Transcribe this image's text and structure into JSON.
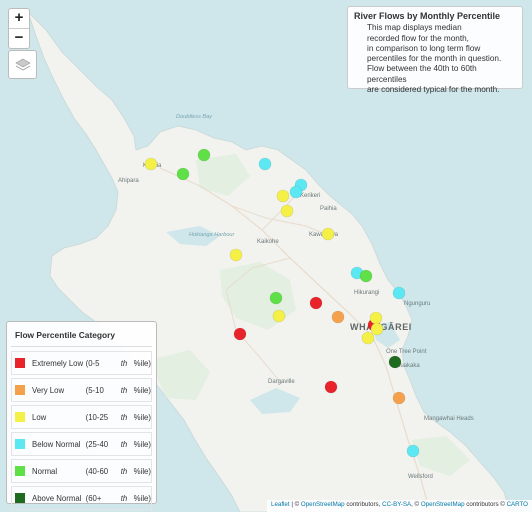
{
  "controls": {
    "zoom_in": "+",
    "zoom_out": "−"
  },
  "info": {
    "title": "River Flows by Monthly Percentile",
    "lines": [
      "This map displays median",
      "recorded flow for the month,",
      "in comparison to long term flow",
      "percentiles for the month in question.",
      "Flow between the 40th to 60th percentiles",
      "are considered typical for the month."
    ]
  },
  "legend": {
    "title": "Flow Percentile Category",
    "items": [
      {
        "category": "Extremely Low",
        "range": "(0-5",
        "sup": "th",
        "suffix": "%ile)",
        "color": "#e8232a"
      },
      {
        "category": "Very Low",
        "range": "(5-10",
        "sup": "th",
        "suffix": "%ile)",
        "color": "#f5a04b"
      },
      {
        "category": "Low",
        "range": "(10-25",
        "sup": "th",
        "suffix": "%ile)",
        "color": "#f4f046"
      },
      {
        "category": "Below Normal",
        "range": "(25-40",
        "sup": "th",
        "suffix": "%ile)",
        "color": "#5ce8f2"
      },
      {
        "category": "Normal",
        "range": "(40-60",
        "sup": "th",
        "suffix": "%ile)",
        "color": "#5ee046"
      },
      {
        "category": "Above Normal",
        "range": "(60+",
        "sup": "th",
        "suffix": "%ile)",
        "color": "#1e6a1e"
      }
    ]
  },
  "places": {
    "kaitaia": "Kaitaia",
    "ahipara": "Ahipara",
    "doubtless_bay": "Doubtless Bay",
    "kerikeri": "Kerikeri",
    "paihia": "Paihia",
    "kawakawa": "Kawakawa",
    "hokianga": "Hokianga Harbour",
    "kaikohe": "Kaikohe",
    "hikurangi": "Hikurangi",
    "ngunguru": "Ngunguru",
    "whangarei": "WHANGĀREI",
    "one_tree_point": "One Tree Point",
    "ruakaka": "Ruakaka",
    "dargaville": "Dargaville",
    "mangawhai": "Mangawhai Heads",
    "wellsford": "Wellsford"
  },
  "sites": [
    {
      "category": "Extremely Low"
    },
    {
      "category": "Extremely Low"
    },
    {
      "category": "Extremely Low"
    },
    {
      "category": "Extremely Low"
    },
    {
      "category": "Very Low"
    },
    {
      "category": "Very Low"
    },
    {
      "category": "Low"
    },
    {
      "category": "Low"
    },
    {
      "category": "Low"
    },
    {
      "category": "Low"
    },
    {
      "category": "Low"
    },
    {
      "category": "Low"
    },
    {
      "category": "Low"
    },
    {
      "category": "Low"
    },
    {
      "category": "Low"
    },
    {
      "category": "Below Normal"
    },
    {
      "category": "Below Normal"
    },
    {
      "category": "Below Normal"
    },
    {
      "category": "Below Normal"
    },
    {
      "category": "Below Normal"
    },
    {
      "category": "Below Normal"
    },
    {
      "category": "Normal"
    },
    {
      "category": "Normal"
    },
    {
      "category": "Normal"
    },
    {
      "category": "Normal"
    },
    {
      "category": "Above Normal"
    }
  ],
  "attribution": {
    "leaflet": "Leaflet",
    "sep1": " | © ",
    "osm": "OpenStreetMap",
    "contrib1": " contributors, ",
    "ccbysa": "CC-BY-SA",
    "sep2": ", © ",
    "osm2": "OpenStreetMap",
    "contrib2": " contributors © ",
    "carto": "CARTO"
  }
}
